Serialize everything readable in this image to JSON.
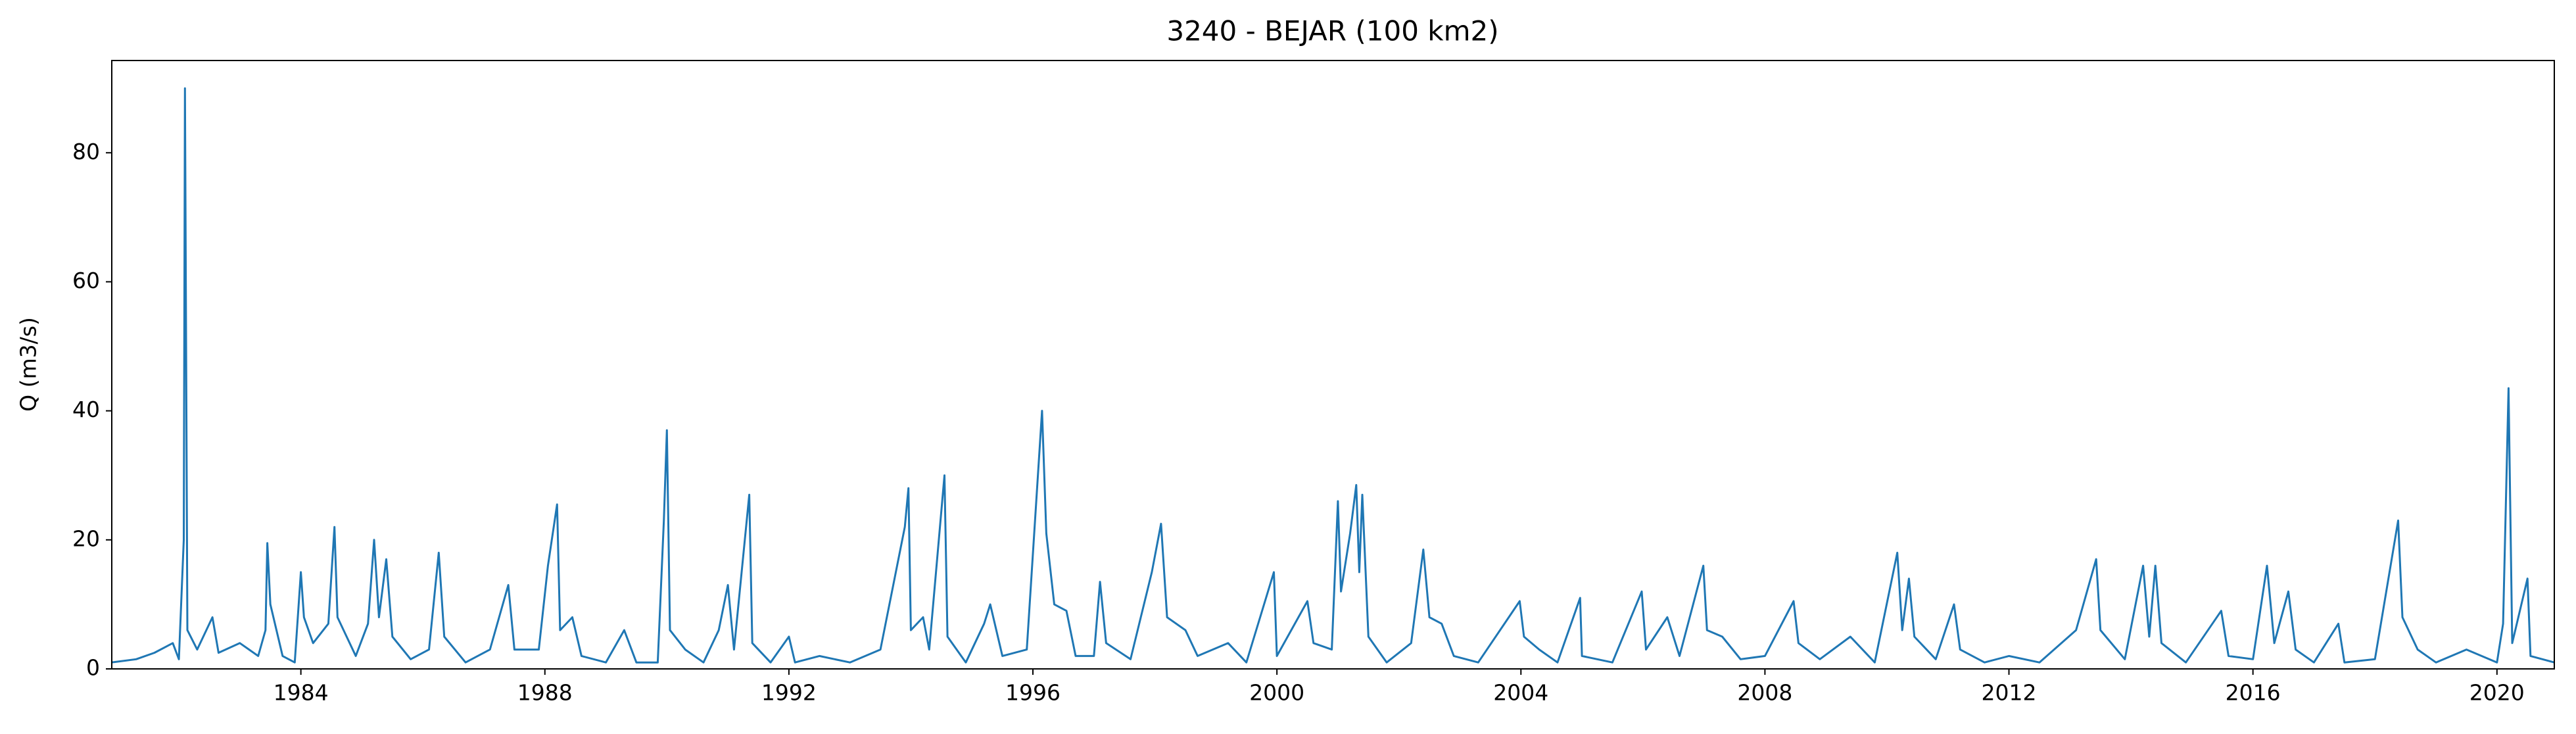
{
  "chart_data": {
    "type": "line",
    "title": "3240 - BEJAR (100 km2)",
    "ylabel": "Q (m3/s)",
    "xlim": [
      1980.9,
      2020.94
    ],
    "ylim": [
      0,
      94.3
    ],
    "xticks": [
      1984,
      1988,
      1992,
      1996,
      2000,
      2004,
      2008,
      2012,
      2016,
      2020
    ],
    "yticks": [
      0,
      20,
      40,
      60,
      80
    ],
    "x": [
      1980.9,
      1981.3,
      1981.6,
      1981.9,
      1982.0,
      1982.08,
      1982.1,
      1982.14,
      1982.3,
      1982.55,
      1982.65,
      1983.0,
      1983.3,
      1983.42,
      1983.45,
      1983.5,
      1983.7,
      1983.9,
      1984.0,
      1984.05,
      1984.2,
      1984.45,
      1984.55,
      1984.6,
      1984.9,
      1985.1,
      1985.2,
      1985.28,
      1985.4,
      1985.5,
      1985.8,
      1986.1,
      1986.26,
      1986.35,
      1986.7,
      1987.1,
      1987.4,
      1987.5,
      1987.9,
      1988.05,
      1988.2,
      1988.25,
      1988.45,
      1988.6,
      1989.0,
      1989.3,
      1989.5,
      1989.85,
      1989.95,
      1990.0,
      1990.05,
      1990.3,
      1990.6,
      1990.85,
      1991.0,
      1991.1,
      1991.35,
      1991.4,
      1991.7,
      1992.0,
      1992.1,
      1992.5,
      1993.0,
      1993.5,
      1993.9,
      1993.96,
      1994.0,
      1994.2,
      1994.3,
      1994.55,
      1994.6,
      1994.9,
      1995.2,
      1995.3,
      1995.5,
      1995.9,
      1996.15,
      1996.22,
      1996.35,
      1996.55,
      1996.7,
      1997.0,
      1997.1,
      1997.2,
      1997.6,
      1997.95,
      1998.1,
      1998.2,
      1998.5,
      1998.7,
      1999.2,
      1999.5,
      1999.95,
      2000.0,
      2000.5,
      2000.6,
      2000.9,
      2001.0,
      2001.05,
      2001.2,
      2001.3,
      2001.35,
      2001.4,
      2001.5,
      2001.8,
      2002.2,
      2002.4,
      2002.5,
      2002.7,
      2002.9,
      2003.3,
      2003.98,
      2004.05,
      2004.3,
      2004.6,
      2004.97,
      2005.0,
      2005.5,
      2005.98,
      2006.05,
      2006.4,
      2006.6,
      2006.99,
      2007.05,
      2007.3,
      2007.6,
      2008.0,
      2008.47,
      2008.55,
      2008.9,
      2009.4,
      2009.8,
      2010.17,
      2010.25,
      2010.36,
      2010.45,
      2010.8,
      2011.1,
      2011.2,
      2011.6,
      2012.0,
      2012.5,
      2013.1,
      2013.43,
      2013.5,
      2013.9,
      2014.2,
      2014.3,
      2014.4,
      2014.5,
      2014.9,
      2015.48,
      2015.6,
      2016.0,
      2016.23,
      2016.35,
      2016.58,
      2016.7,
      2017.0,
      2017.4,
      2017.5,
      2018.0,
      2018.38,
      2018.45,
      2018.7,
      2019.0,
      2019.5,
      2020.0,
      2020.1,
      2020.19,
      2020.25,
      2020.5,
      2020.55,
      2020.94
    ],
    "series": [
      {
        "name": "Q",
        "color": "#1f77b4",
        "values": [
          1,
          1.5,
          2.5,
          4,
          1.5,
          20,
          90,
          6,
          3,
          8,
          2.5,
          4,
          2,
          6,
          19.5,
          10,
          2,
          1,
          15,
          8,
          4,
          7,
          22,
          8,
          2,
          7,
          20,
          8,
          17,
          5,
          1.5,
          3,
          18,
          5,
          1,
          3,
          13,
          3,
          3,
          16,
          25.5,
          6,
          8,
          2,
          1,
          6,
          1,
          1,
          23,
          37,
          6,
          3,
          1,
          6,
          13,
          3,
          27,
          4,
          1,
          5,
          1,
          2,
          1,
          3,
          22,
          28,
          6,
          8,
          3,
          30,
          5,
          1,
          7,
          10,
          2,
          3,
          40,
          21,
          10,
          9,
          2,
          2,
          13.5,
          4,
          1.5,
          15,
          22.5,
          8,
          6,
          2,
          4,
          1,
          15,
          2,
          10.5,
          4,
          3,
          26,
          12,
          21,
          28.5,
          15,
          27,
          5,
          1,
          4,
          18.5,
          8,
          7,
          2,
          1,
          10.5,
          5,
          3,
          1,
          11,
          2,
          1,
          12,
          3,
          8,
          2,
          16,
          6,
          5,
          1.5,
          2,
          10.5,
          4,
          1.5,
          5,
          1,
          18,
          6,
          14,
          5,
          1.5,
          10,
          3,
          1,
          2,
          1,
          6,
          17,
          6,
          1.5,
          16,
          5,
          16,
          4,
          1,
          9,
          2,
          1.5,
          16,
          4,
          12,
          3,
          1,
          7,
          1,
          1.5,
          23,
          8,
          3,
          1,
          3,
          1,
          7,
          43.5,
          4,
          14,
          2,
          1
        ]
      }
    ]
  }
}
